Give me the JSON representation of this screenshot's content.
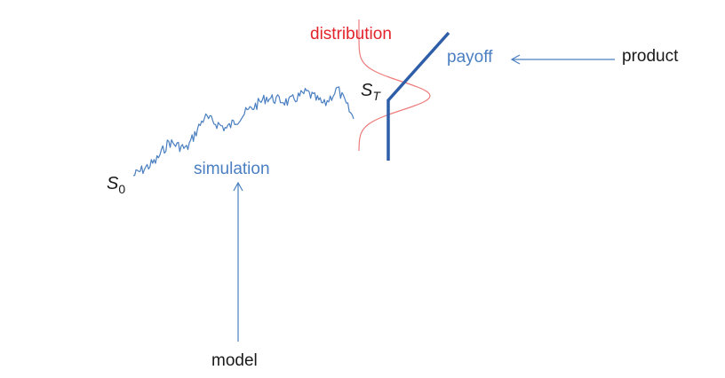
{
  "labels": {
    "s0": {
      "base": "S",
      "sub": "0"
    },
    "st": {
      "base": "S",
      "sub": "T"
    },
    "simulation": "simulation",
    "model": "model",
    "distribution": "distribution",
    "payoff": "payoff",
    "product": "product"
  },
  "colors": {
    "blue": "#4a7fc1",
    "dark_blue": "#2e5ea8",
    "red": "#e2242b",
    "red_curve": "#ee7b7b",
    "text": "#1a1a1a",
    "arrow": "#4a7fc1"
  }
}
